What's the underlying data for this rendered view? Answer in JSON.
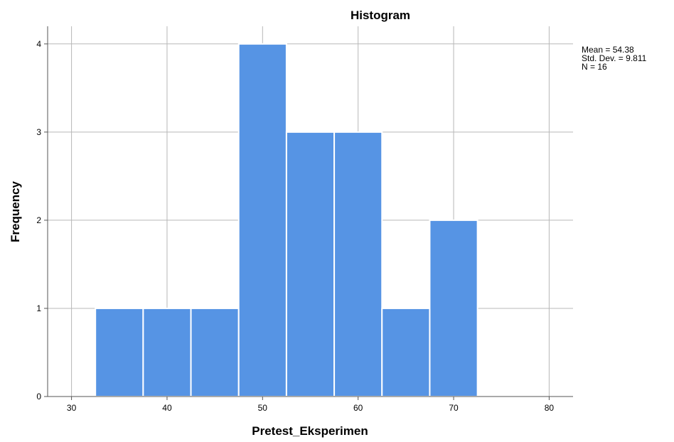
{
  "chart_data": {
    "type": "bar",
    "title": "Histogram",
    "xlabel": "Pretest_Eksperimen",
    "ylabel": "Frequency",
    "bin_width": 5,
    "bins": [
      {
        "start": 32.5,
        "end": 37.5,
        "value": 1
      },
      {
        "start": 37.5,
        "end": 42.5,
        "value": 1
      },
      {
        "start": 42.5,
        "end": 47.5,
        "value": 1
      },
      {
        "start": 47.5,
        "end": 52.5,
        "value": 4
      },
      {
        "start": 52.5,
        "end": 57.5,
        "value": 3
      },
      {
        "start": 57.5,
        "end": 62.5,
        "value": 3
      },
      {
        "start": 62.5,
        "end": 67.5,
        "value": 1
      },
      {
        "start": 67.5,
        "end": 72.5,
        "value": 2
      }
    ],
    "xlim": [
      27.5,
      82.5
    ],
    "ylim": [
      0,
      4.2
    ],
    "xticks": [
      30,
      40,
      50,
      60,
      70,
      80
    ],
    "yticks": [
      0,
      1,
      2,
      3,
      4
    ],
    "grid": true,
    "stats": [
      "Mean = 54.38",
      "Std. Dev. = 9.811",
      "N = 16"
    ],
    "bar_color": "#5694e4",
    "grid_color": "#b8b8b8"
  }
}
